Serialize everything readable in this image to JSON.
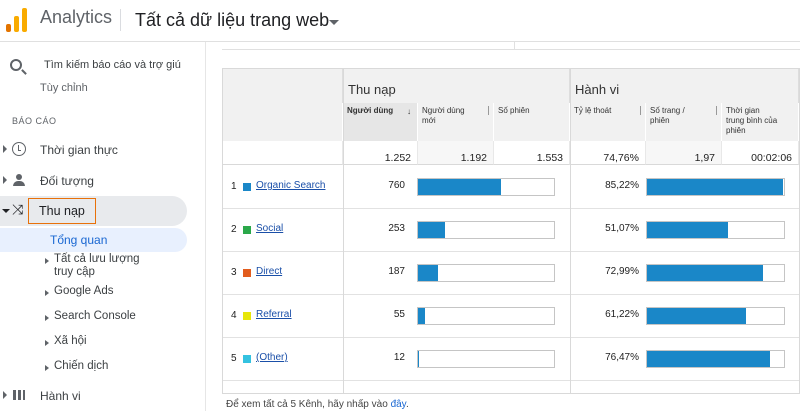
{
  "header": {
    "app_title": "Analytics",
    "property_name": "Tất cả dữ liệu trang web"
  },
  "sidebar": {
    "search_placeholder": "Tìm kiếm báo cáo và trợ giú",
    "clipped_item": "Tùy chỉnh",
    "section_label": "BÁO CÁO",
    "items": {
      "realtime": "Thời gian thực",
      "audience": "Đối tượng",
      "acquisition": "Thu nạp",
      "behavior": "Hành vi"
    },
    "acquisition_sub": {
      "overview": "Tổng quan",
      "all_traffic": "Tất cả lưu lượng truy cập",
      "google_ads": "Google Ads",
      "search_console": "Search Console",
      "social": "Xã hội",
      "campaigns": "Chiến dịch"
    }
  },
  "table": {
    "group_acquisition": "Thu nạp",
    "group_behavior": "Hành vi",
    "columns": {
      "users": "Người dùng",
      "new_users": "Người dùng mới",
      "sessions": "Số phiên",
      "bounce_rate": "Tỷ lệ thoát",
      "pages_per_session": "Số trang / phiên",
      "avg_session_duration": "Thời gian trung bình của phiên"
    },
    "totals": {
      "users": "1.252",
      "new_users": "1.192",
      "sessions": "1.553",
      "bounce_rate": "74,76%",
      "pages_per_session": "1,97",
      "avg_session_duration": "00:02:06"
    },
    "rows": [
      {
        "rank": "1",
        "channel": "Organic Search",
        "color": "#1a87c8",
        "users": "760",
        "users_bar": 0.61,
        "bounce": "85,22%",
        "bounce_bar": 0.99
      },
      {
        "rank": "2",
        "channel": "Social",
        "color": "#2aa84a",
        "users": "253",
        "users_bar": 0.2,
        "bounce": "51,07%",
        "bounce_bar": 0.59
      },
      {
        "rank": "3",
        "channel": "Direct",
        "color": "#e25c1d",
        "users": "187",
        "users_bar": 0.15,
        "bounce": "72,99%",
        "bounce_bar": 0.85
      },
      {
        "rank": "4",
        "channel": "Referral",
        "color": "#e7e60a",
        "users": "55",
        "users_bar": 0.05,
        "bounce": "61,22%",
        "bounce_bar": 0.72
      },
      {
        "rank": "5",
        "channel": "(Other)",
        "color": "#34c2e0",
        "users": "12",
        "users_bar": 0.01,
        "bounce": "76,47%",
        "bounce_bar": 0.9
      }
    ]
  },
  "footer": {
    "note": "Để xem tất cả 5 Kênh, hãy nhấp vào",
    "link": "đây",
    "period": "."
  }
}
